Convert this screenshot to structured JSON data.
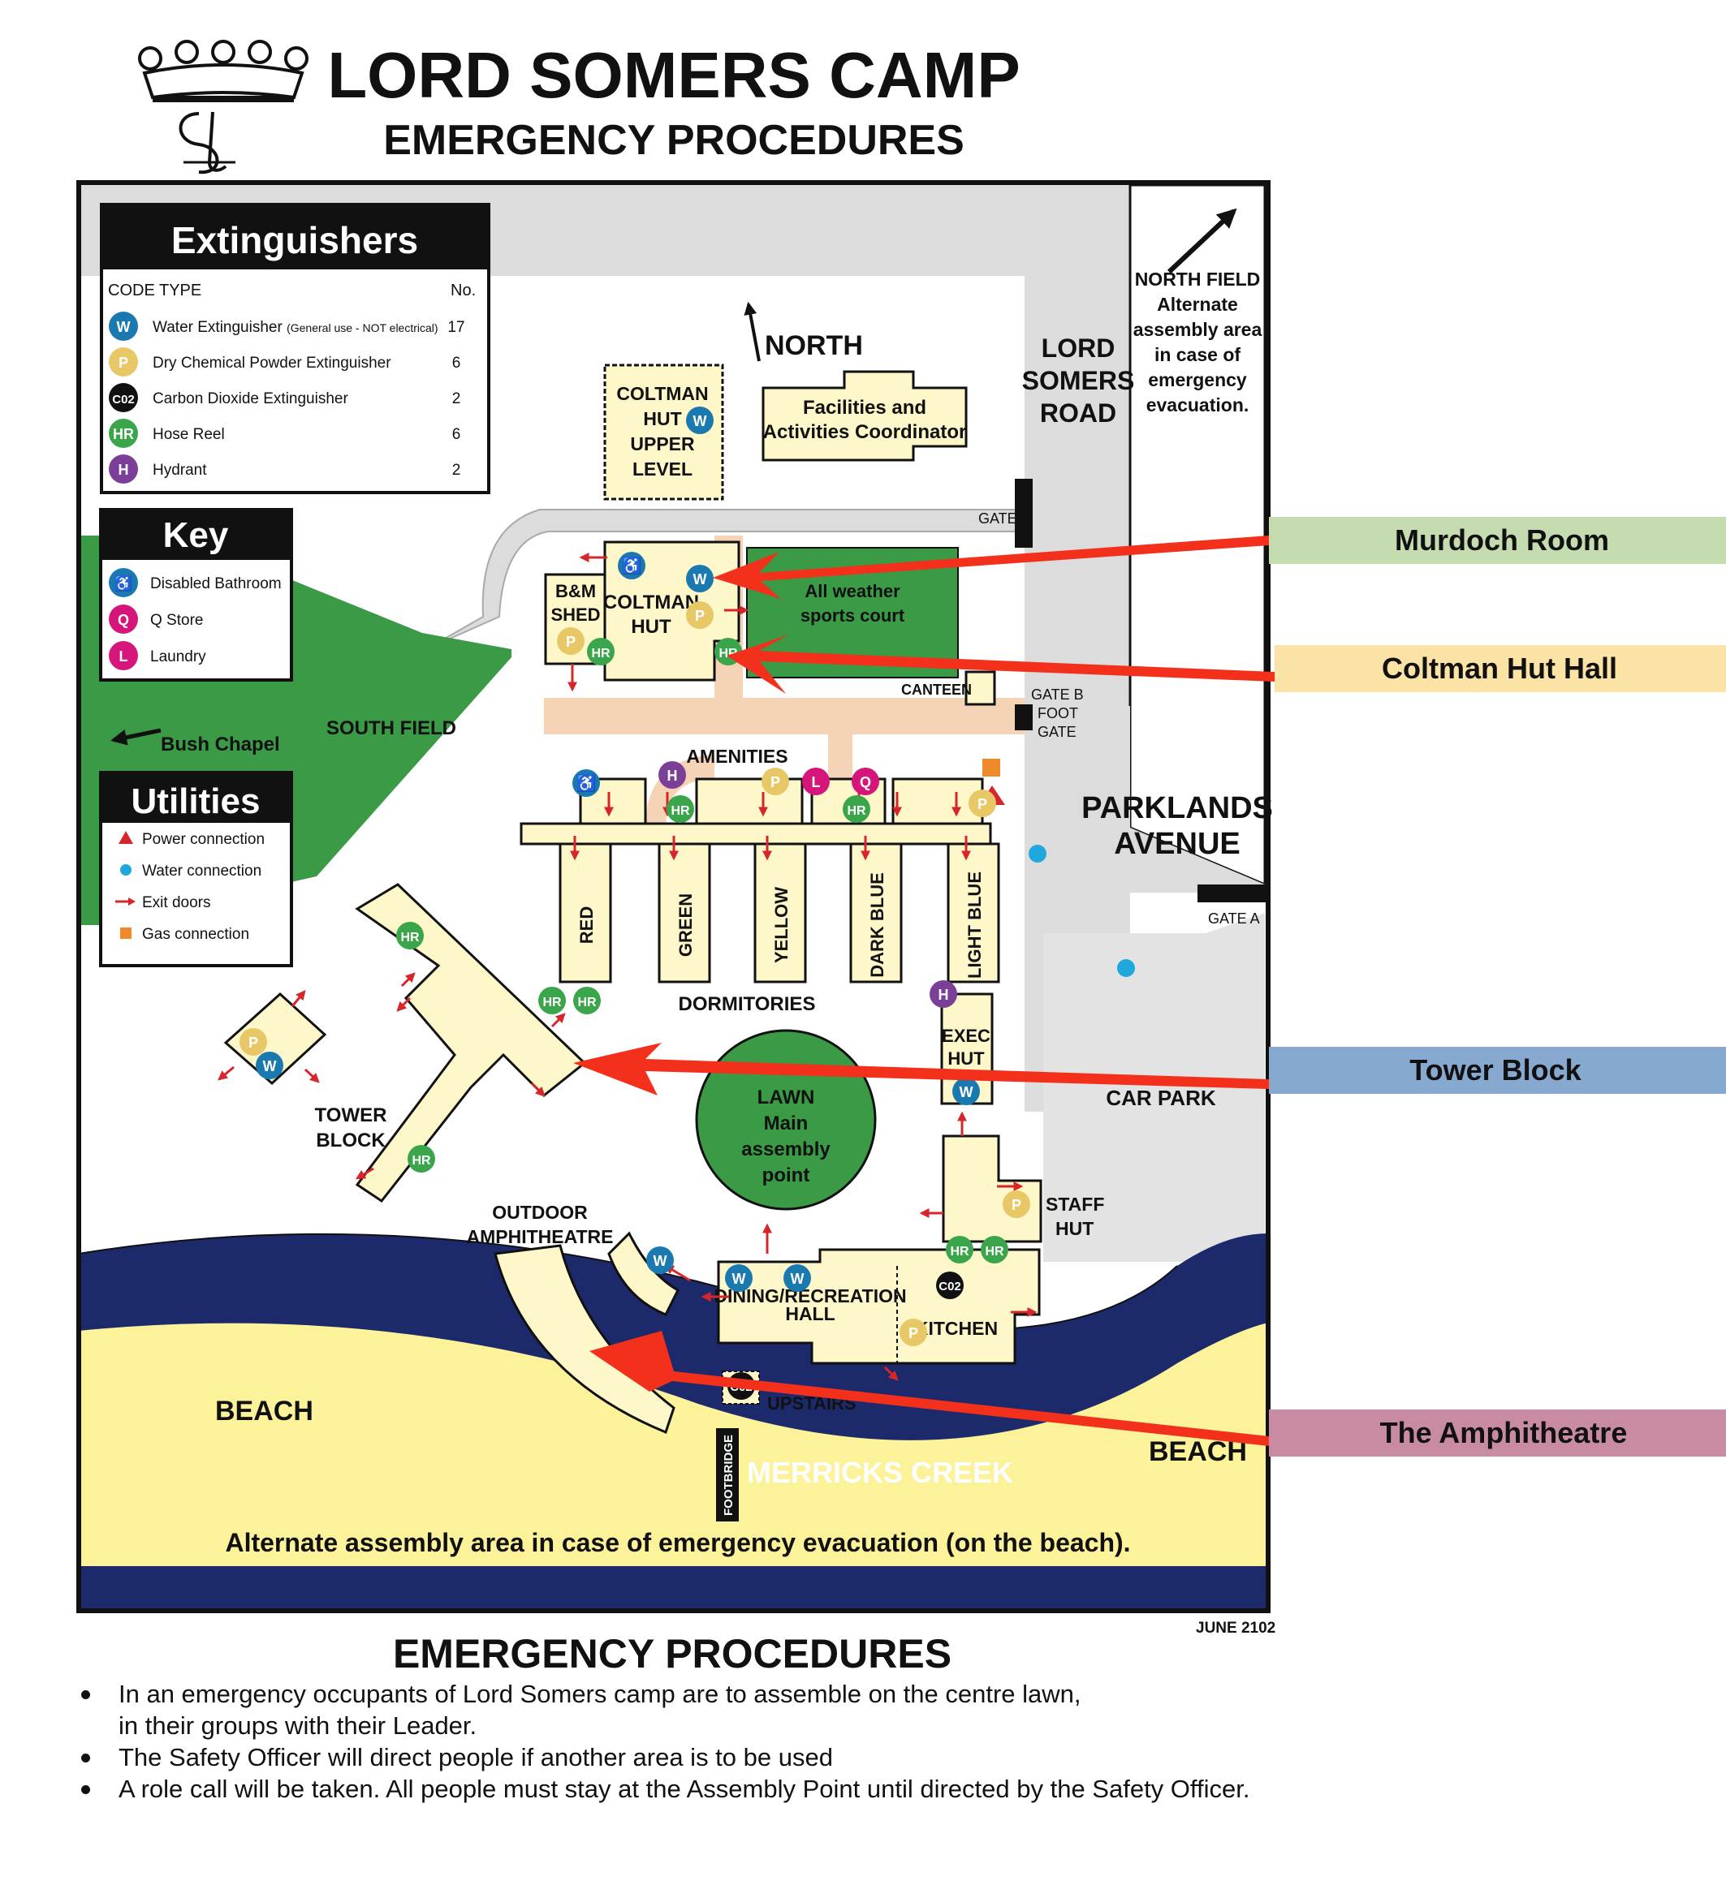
{
  "header": {
    "title": "LORD SOMERS CAMP",
    "subtitle": "EMERGENCY PROCEDURES"
  },
  "extinguishers": {
    "title": "Extinguishers",
    "col_code_type": "CODE TYPE",
    "col_no": "No.",
    "items": [
      {
        "code": "W",
        "label": "Water Extinguisher",
        "note": "(General use - NOT electrical)",
        "count": "17",
        "color": "#1a7ab0"
      },
      {
        "code": "P",
        "label": "Dry Chemical Powder Extinguisher",
        "note": "",
        "count": "6",
        "color": "#e8c766"
      },
      {
        "code": "C02",
        "label": "Carbon Dioxide Extinguisher",
        "note": "",
        "count": "2",
        "color": "#111111"
      },
      {
        "code": "HR",
        "label": "Hose Reel",
        "note": "",
        "count": "6",
        "color": "#3aa54a"
      },
      {
        "code": "H",
        "label": "Hydrant",
        "note": "",
        "count": "2",
        "color": "#7b3f98"
      }
    ]
  },
  "key": {
    "title": "Key",
    "items": [
      {
        "code": "♿",
        "label": "Disabled Bathroom",
        "color": "#1a7ab0"
      },
      {
        "code": "Q",
        "label": "Q Store",
        "color": "#d6157a"
      },
      {
        "code": "L",
        "label": "Laundry",
        "color": "#d6157a"
      }
    ]
  },
  "utilities": {
    "title": "Utilities",
    "items": [
      {
        "label": "Power connection",
        "icon": "triangle-icon",
        "color": "#d7262b"
      },
      {
        "label": "Water connection",
        "icon": "dot-icon",
        "color": "#20a8dd"
      },
      {
        "label": "Exit doors",
        "icon": "arrow-icon",
        "color": "#d7262b"
      },
      {
        "label": "Gas connection",
        "icon": "square-icon",
        "color": "#ef8a2a"
      }
    ]
  },
  "map": {
    "north": "NORTH",
    "north_field": [
      "NORTH FIELD",
      "Alternate",
      "assembly area",
      "in case of",
      "emergency",
      "evacuation."
    ],
    "lord_somers_road": [
      "LORD",
      "SOMERS",
      "ROAD"
    ],
    "parklands_avenue": [
      "PARKLANDS",
      "AVENUE"
    ],
    "car_park": "CAR PARK",
    "gate_a": "GATE A",
    "gate_b": [
      "GATE B",
      "FOOT",
      "GATE"
    ],
    "gate_c": "GATE C",
    "coltman_upper": [
      "COLTMAN",
      "HUT",
      "UPPER",
      "LEVEL"
    ],
    "facilities": [
      "Facilities and",
      "Activities Coordinator"
    ],
    "bm_shed": [
      "B&M",
      "SHED"
    ],
    "coltman_hut": [
      "COLTMAN",
      "HUT"
    ],
    "sports_court": [
      "All weather",
      "sports court"
    ],
    "canteen": "CANTEEN",
    "south_field": "SOUTH FIELD",
    "bush_chapel": "Bush Chapel",
    "amenities": "AMENITIES",
    "dorms": [
      "RED",
      "GREEN",
      "YELLOW",
      "DARK BLUE",
      "LIGHT BLUE"
    ],
    "dormitories": "DORMITORIES",
    "exec_hut": [
      "EXEC",
      "HUT"
    ],
    "tower_block": [
      "TOWER",
      "BLOCK"
    ],
    "lawn": [
      "LAWN",
      "Main",
      "assembly",
      "point"
    ],
    "staff_hut": [
      "STAFF",
      "HUT"
    ],
    "outdoor_amphitheatre": [
      "OUTDOOR",
      "AMPHITHEATRE"
    ],
    "dining": [
      "DINING/RECREATION",
      "HALL"
    ],
    "kitchen": "KITCHEN",
    "upstairs": "UPSTAIRS",
    "beach": "BEACH",
    "merricks_creek": "MERRICKS CREEK",
    "footbridge": "FOOTBRIDGE",
    "alternate_beach": "Alternate assembly area in case of emergency evacuation (on the beach).",
    "date": "JUNE 2102"
  },
  "callouts": [
    {
      "label": "Murdoch Room",
      "color": "#c5dcb0"
    },
    {
      "label": "Coltman Hut Hall",
      "color": "#fbe3a6"
    },
    {
      "label": "Tower Block",
      "color": "#87a9d0"
    },
    {
      "label": "The Amphitheatre",
      "color": "#c98ba3"
    }
  ],
  "procedures": {
    "title": "EMERGENCY PROCEDURES",
    "bullets": [
      "In an emergency occupants of Lord Somers camp are to assemble on the centre lawn,",
      "in their groups with their Leader.",
      "The Safety Officer will direct people if another area is to be used",
      "A role call will be taken.  All people must stay at the Assembly Point until directed by the Safety Officer."
    ]
  },
  "colors": {
    "building": "#fdf7c9",
    "grass": "#3a9a45",
    "road": "#dcdcdc",
    "path": "#f5d3b6",
    "creek": "#1c2a6b",
    "beach": "#fbf29a",
    "arrow": "#f2301b"
  }
}
